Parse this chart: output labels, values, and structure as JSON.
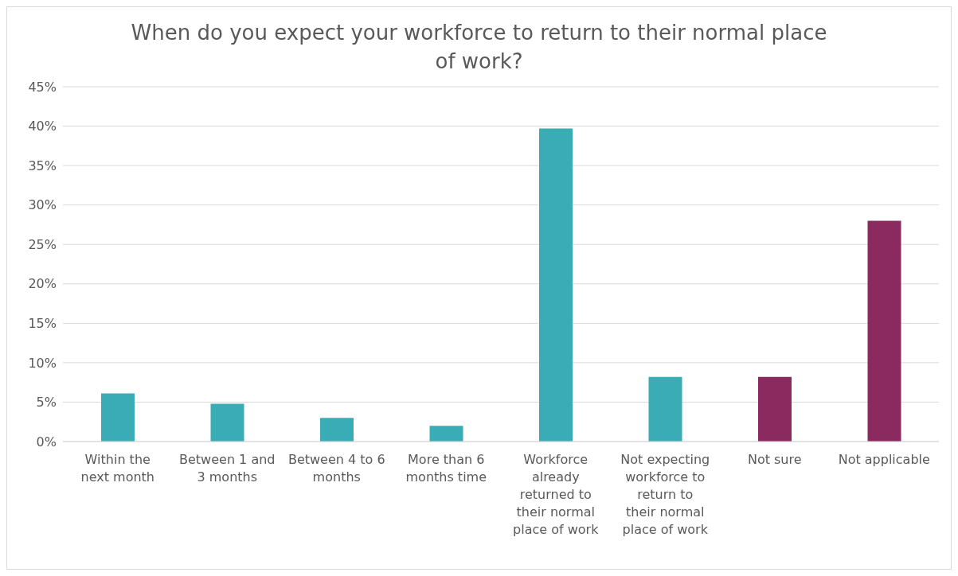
{
  "chart_data": {
    "type": "bar",
    "title": "When do you expect your workforce to return to their normal place of work?",
    "categories": [
      "Within the next month",
      "Between 1 and 3 months",
      "Between 4 to 6 months",
      "More than 6 months time",
      "Workforce already returned to their normal place of work",
      "Not expecting workforce to return to their normal place of work",
      "Not sure",
      "Not applicable"
    ],
    "values": [
      6.1,
      4.8,
      3.0,
      2.0,
      39.7,
      8.2,
      8.2,
      28.0
    ],
    "colors": [
      "#3aacb6",
      "#3aacb6",
      "#3aacb6",
      "#3aacb6",
      "#3aacb6",
      "#3aacb6",
      "#8b2a5f",
      "#8b2a5f"
    ],
    "ylim": [
      0,
      45
    ],
    "yticks": [
      {
        "value": 0,
        "label": "0%"
      },
      {
        "value": 5,
        "label": "5%"
      },
      {
        "value": 10,
        "label": "10%"
      },
      {
        "value": 15,
        "label": "15%"
      },
      {
        "value": 20,
        "label": "20%"
      },
      {
        "value": 25,
        "label": "25%"
      },
      {
        "value": 30,
        "label": "30%"
      },
      {
        "value": 35,
        "label": "35%"
      },
      {
        "value": 40,
        "label": "40%"
      },
      {
        "value": 45,
        "label": "45%"
      }
    ],
    "grid": "y"
  }
}
